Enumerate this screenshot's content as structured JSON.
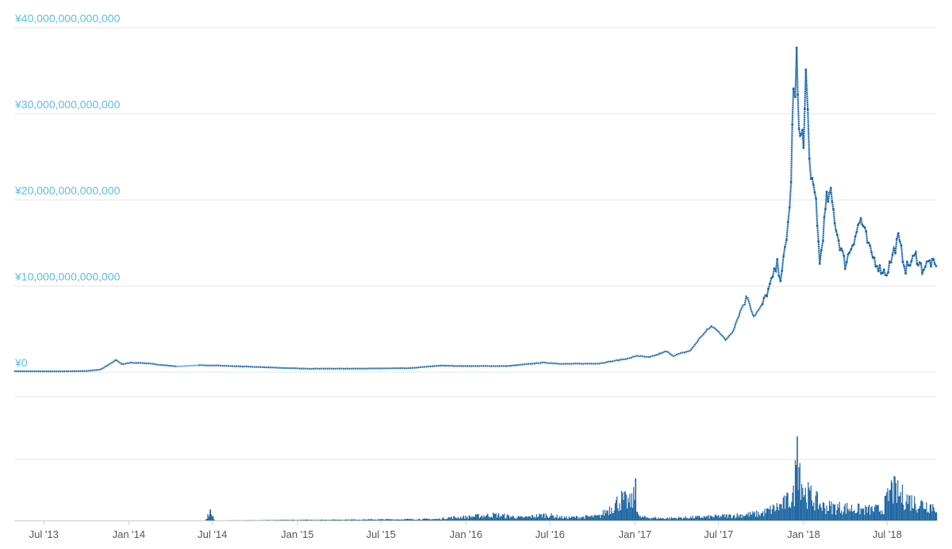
{
  "chart_data": [
    {
      "type": "line",
      "title": "",
      "xlabel": "",
      "ylabel": "",
      "x_range": [
        "2013-04-28",
        "2018-10-15"
      ],
      "ylim": [
        0,
        40000000000000
      ],
      "y_ticks": [
        0,
        10000000000000,
        20000000000000,
        30000000000000,
        40000000000000
      ],
      "y_tick_labels": [
        "¥0",
        "¥10,000,000,000,000",
        "¥20,000,000,000,000",
        "¥30,000,000,000,000",
        "¥40,000,000,000,000"
      ],
      "x_ticks": [
        {
          "date": "2013-07-01",
          "label": "Jul '13"
        },
        {
          "date": "2014-01-01",
          "label": "Jan '14"
        },
        {
          "date": "2014-07-01",
          "label": "Jul '14"
        },
        {
          "date": "2015-01-01",
          "label": "Jan '15"
        },
        {
          "date": "2015-07-01",
          "label": "Jul '15"
        },
        {
          "date": "2016-01-01",
          "label": "Jan '16"
        },
        {
          "date": "2016-07-01",
          "label": "Jul '16"
        },
        {
          "date": "2017-01-01",
          "label": "Jan '17"
        },
        {
          "date": "2017-07-01",
          "label": "Jul '17"
        },
        {
          "date": "2018-01-01",
          "label": "Jan '18"
        },
        {
          "date": "2018-07-01",
          "label": "Jul '18"
        }
      ],
      "grid": true,
      "legend": "none",
      "line_color": "#1f67a4",
      "connector_color": "#7eb6e6",
      "series": [
        {
          "points": [
            [
              "2013-04-28",
              100000000000.0
            ],
            [
              "2013-06-01",
              90000000000.0
            ],
            [
              "2013-08-01",
              80000000000.0
            ],
            [
              "2013-10-01",
              120000000000.0
            ],
            [
              "2013-11-01",
              300000000000.0
            ],
            [
              "2013-11-20",
              900000000000.0
            ],
            [
              "2013-12-04",
              1400000000000.0
            ],
            [
              "2013-12-18",
              900000000000.0
            ],
            [
              "2014-01-05",
              1100000000000.0
            ],
            [
              "2014-02-01",
              1050000000000.0
            ],
            [
              "2014-03-01",
              900000000000.0
            ],
            [
              "2014-04-15",
              650000000000.0
            ],
            [
              "2014-06-01",
              800000000000.0
            ],
            [
              "2014-07-15",
              750000000000.0
            ],
            [
              "2014-10-01",
              600000000000.0
            ],
            [
              "2015-01-15",
              400000000000.0
            ],
            [
              "2015-05-01",
              400000000000.0
            ],
            [
              "2015-09-01",
              450000000000.0
            ],
            [
              "2015-11-05",
              750000000000.0
            ],
            [
              "2016-01-01",
              700000000000.0
            ],
            [
              "2016-04-01",
              700000000000.0
            ],
            [
              "2016-06-15",
              1100000000000.0
            ],
            [
              "2016-08-01",
              950000000000.0
            ],
            [
              "2016-10-15",
              1000000000000.0
            ],
            [
              "2016-12-20",
              1600000000000.0
            ],
            [
              "2017-01-05",
              1900000000000.0
            ],
            [
              "2017-02-01",
              1700000000000.0
            ],
            [
              "2017-03-10",
              2400000000000.0
            ],
            [
              "2017-03-25",
              1900000000000.0
            ],
            [
              "2017-05-01",
              2500000000000.0
            ],
            [
              "2017-05-25",
              4200000000000.0
            ],
            [
              "2017-06-15",
              5300000000000.0
            ],
            [
              "2017-07-01",
              4800000000000.0
            ],
            [
              "2017-07-16",
              3700000000000.0
            ],
            [
              "2017-08-01",
              4800000000000.0
            ],
            [
              "2017-08-20",
              7500000000000.0
            ],
            [
              "2017-09-02",
              8800000000000.0
            ],
            [
              "2017-09-15",
              6500000000000.0
            ],
            [
              "2017-10-01",
              7500000000000.0
            ],
            [
              "2017-10-20",
              10000000000000.0
            ],
            [
              "2017-11-05",
              12500000000000.0
            ],
            [
              "2017-11-12",
              11000000000000.0
            ],
            [
              "2017-11-25",
              15000000000000.0
            ],
            [
              "2017-12-05",
              22000000000000.0
            ],
            [
              "2017-12-10",
              34000000000000.0
            ],
            [
              "2017-12-14",
              31000000000000.0
            ],
            [
              "2017-12-17",
              37000000000000.0
            ],
            [
              "2017-12-22",
              27000000000000.0
            ],
            [
              "2017-12-27",
              29000000000000.0
            ],
            [
              "2018-01-01",
              26000000000000.0
            ],
            [
              "2018-01-06",
              34500000000000.0
            ],
            [
              "2018-01-10",
              30000000000000.0
            ],
            [
              "2018-01-17",
              22000000000000.0
            ],
            [
              "2018-01-28",
              20000000000000.0
            ],
            [
              "2018-02-05",
              12500000000000.0
            ],
            [
              "2018-02-12",
              16000000000000.0
            ],
            [
              "2018-02-20",
              20000000000000.0
            ],
            [
              "2018-03-01",
              20500000000000.0
            ],
            [
              "2018-03-15",
              16000000000000.0
            ],
            [
              "2018-04-01",
              12500000000000.0
            ],
            [
              "2018-04-20",
              15500000000000.0
            ],
            [
              "2018-05-05",
              17800000000000.0
            ],
            [
              "2018-05-25",
              14000000000000.0
            ],
            [
              "2018-06-15",
              12000000000000.0
            ],
            [
              "2018-06-30",
              11500000000000.0
            ],
            [
              "2018-07-25",
              15500000000000.0
            ],
            [
              "2018-08-10",
              12000000000000.0
            ],
            [
              "2018-09-01",
              13500000000000.0
            ],
            [
              "2018-09-15",
              12000000000000.0
            ],
            [
              "2018-10-01",
              12800000000000.0
            ],
            [
              "2018-10-15",
              12300000000000.0
            ]
          ]
        }
      ]
    },
    {
      "type": "bar",
      "title": "",
      "xlabel": "",
      "ylabel": "",
      "x_range": [
        "2013-04-28",
        "2018-10-15"
      ],
      "grid": true,
      "bar_color": "#1f67a4",
      "series": [
        {
          "volume_profile": [
            [
              "2013-04-28",
              0.0
            ],
            [
              "2014-06-15",
              0.0
            ],
            [
              "2014-06-25",
              0.13
            ],
            [
              "2014-07-05",
              0.0
            ],
            [
              "2015-11-01",
              0.02
            ],
            [
              "2015-11-20",
              0.04
            ],
            [
              "2016-01-01",
              0.05
            ],
            [
              "2016-03-01",
              0.08
            ],
            [
              "2016-05-01",
              0.04
            ],
            [
              "2016-06-20",
              0.08
            ],
            [
              "2016-08-01",
              0.04
            ],
            [
              "2016-10-15",
              0.06
            ],
            [
              "2016-12-01",
              0.3
            ],
            [
              "2016-12-20",
              0.25
            ],
            [
              "2017-01-01",
              0.35
            ],
            [
              "2017-01-08",
              0.05
            ],
            [
              "2017-03-01",
              0.03
            ],
            [
              "2017-06-01",
              0.05
            ],
            [
              "2017-08-01",
              0.07
            ],
            [
              "2017-10-01",
              0.1
            ],
            [
              "2017-11-15",
              0.22
            ],
            [
              "2017-12-10",
              0.35
            ],
            [
              "2017-12-17",
              1.0
            ],
            [
              "2018-01-01",
              0.4
            ],
            [
              "2018-01-15",
              0.35
            ],
            [
              "2018-02-10",
              0.2
            ],
            [
              "2018-04-01",
              0.18
            ],
            [
              "2018-05-15",
              0.15
            ],
            [
              "2018-06-20",
              0.16
            ],
            [
              "2018-07-10",
              0.45
            ],
            [
              "2018-07-30",
              0.35
            ],
            [
              "2018-09-01",
              0.25
            ],
            [
              "2018-10-15",
              0.2
            ]
          ]
        }
      ]
    }
  ]
}
